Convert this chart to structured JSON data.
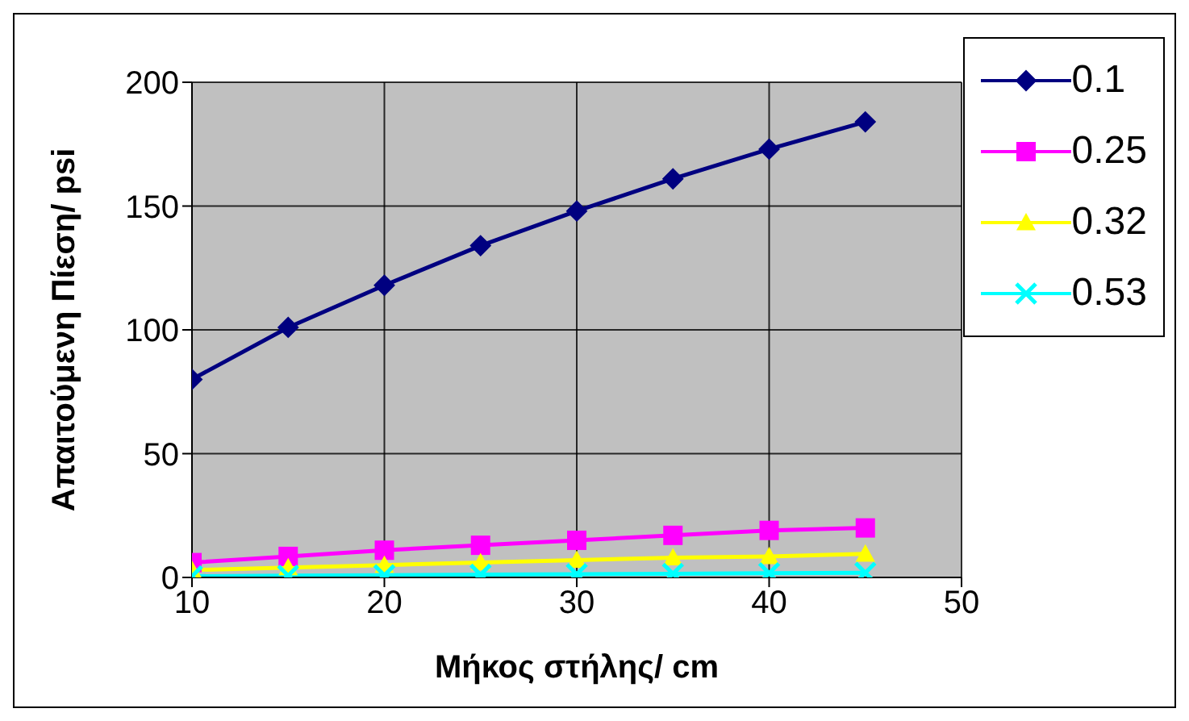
{
  "chart_data": {
    "type": "line",
    "xlabel": "Μήκος στήλης/ cm",
    "ylabel": "Απαιτούμενη Πίεση/ psi",
    "x": [
      10,
      15,
      20,
      25,
      30,
      35,
      40,
      45
    ],
    "xlim": [
      10,
      50
    ],
    "xticks": [
      10,
      20,
      30,
      40,
      50
    ],
    "ylim": [
      0,
      200
    ],
    "yticks": [
      0,
      50,
      100,
      150,
      200
    ],
    "grid": true,
    "legend": "top right",
    "line_style": "solid",
    "series": [
      {
        "name": "0.1",
        "color": "#000080",
        "marker": "diamond",
        "values": [
          80,
          101,
          118,
          134,
          148,
          161,
          173,
          184
        ]
      },
      {
        "name": "0.25",
        "color": "#ff00ff",
        "marker": "square",
        "values": [
          6,
          8.5,
          11,
          13,
          15,
          17,
          19,
          20
        ]
      },
      {
        "name": "0.32",
        "color": "#ffff00",
        "marker": "triangle",
        "values": [
          3,
          4,
          5,
          6,
          7,
          8,
          8.5,
          9.5
        ]
      },
      {
        "name": "0.53",
        "color": "#00ffff",
        "marker": "cross",
        "values": [
          0.5,
          0.7,
          0.9,
          1.1,
          1.3,
          1.5,
          1.7,
          1.9
        ]
      }
    ]
  }
}
